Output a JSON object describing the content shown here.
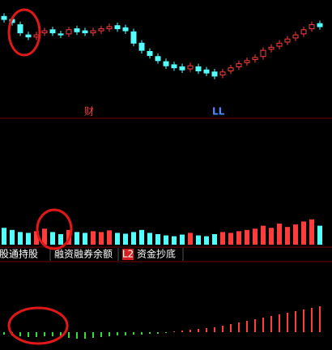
{
  "chart_data": [
    {
      "type": "candlestick",
      "up_color": "#ff3c3c",
      "down_color": "#54ffff",
      "ylim": [
        0,
        100
      ],
      "open": [
        88,
        85,
        80,
        70,
        68,
        72,
        75,
        71,
        71,
        76,
        74,
        72,
        74,
        76,
        79,
        77,
        73,
        62,
        54,
        49,
        44,
        41,
        39,
        37,
        39,
        36,
        34,
        31,
        35,
        39,
        43,
        46,
        49,
        56,
        59,
        63,
        67,
        71,
        76,
        81
      ],
      "high": [
        91,
        88,
        83,
        73,
        73,
        77,
        78,
        74,
        78,
        79,
        77,
        77,
        79,
        81,
        82,
        80,
        76,
        65,
        57,
        52,
        47,
        44,
        42,
        43,
        42,
        39,
        37,
        37,
        41,
        45,
        48,
        51,
        58,
        61,
        65,
        69,
        73,
        78,
        83,
        84
      ],
      "low": [
        82,
        79,
        69,
        65,
        65,
        69,
        69,
        67,
        68,
        70,
        69,
        69,
        71,
        73,
        73,
        71,
        59,
        52,
        47,
        42,
        37,
        35,
        33,
        34,
        32,
        30,
        27,
        28,
        32,
        36,
        40,
        43,
        46,
        53,
        56,
        60,
        64,
        68,
        73,
        75
      ],
      "close": [
        85,
        82,
        72,
        68,
        70,
        74,
        72,
        70,
        75,
        73,
        72,
        74,
        76,
        78,
        76,
        74,
        62,
        55,
        50,
        45,
        40,
        38,
        36,
        40,
        35,
        33,
        30,
        34,
        38,
        42,
        45,
        48,
        55,
        58,
        62,
        66,
        70,
        75,
        80,
        78
      ]
    },
    {
      "type": "bar",
      "ylim": [
        0,
        100
      ],
      "values": [
        40,
        35,
        30,
        28,
        32,
        38,
        30,
        25,
        35,
        30,
        28,
        32,
        30,
        34,
        28,
        26,
        30,
        35,
        28,
        25,
        22,
        20,
        24,
        28,
        22,
        20,
        25,
        30,
        28,
        32,
        35,
        38,
        45,
        40,
        50,
        42,
        48,
        55,
        60,
        45
      ]
    },
    {
      "type": "bar",
      "positive_color": "#ff3c3c",
      "negative_color": "#33dd33",
      "ylim": [
        -20,
        40
      ],
      "values": [
        -3,
        -4,
        -5,
        -6,
        -6,
        -5,
        -5,
        -6,
        -7,
        -8,
        -8,
        -7,
        -6,
        -5,
        -4,
        -4,
        -3,
        -3,
        -2,
        -2,
        -1,
        1,
        2,
        3,
        4,
        5,
        6,
        8,
        10,
        12,
        14,
        16,
        18,
        20,
        22,
        24,
        26,
        28,
        30,
        32
      ]
    }
  ],
  "markers": [
    "财",
    "LL"
  ],
  "tabs": [
    "沪股通持股",
    "融资融券余额",
    "资金抄底"
  ],
  "badge": "L2"
}
